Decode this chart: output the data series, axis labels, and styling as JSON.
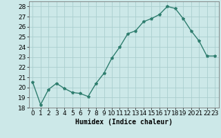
{
  "x": [
    0,
    1,
    2,
    3,
    4,
    5,
    6,
    7,
    8,
    9,
    10,
    11,
    12,
    13,
    14,
    15,
    16,
    17,
    18,
    19,
    20,
    21,
    22,
    23
  ],
  "y": [
    20.5,
    18.3,
    19.8,
    20.4,
    19.9,
    19.5,
    19.4,
    19.1,
    20.4,
    21.4,
    22.9,
    24.0,
    25.3,
    25.6,
    26.5,
    26.8,
    27.2,
    28.0,
    27.8,
    26.8,
    25.6,
    24.6,
    23.1,
    23.1
  ],
  "line_color": "#2e7d6e",
  "marker": "*",
  "marker_size": 3,
  "bg_color": "#cce8e8",
  "grid_color": "#aacece",
  "xlabel": "Humidex (Indice chaleur)",
  "xlim": [
    -0.5,
    23.5
  ],
  "ylim": [
    18,
    28.5
  ],
  "yticks": [
    18,
    19,
    20,
    21,
    22,
    23,
    24,
    25,
    26,
    27,
    28
  ],
  "xticks": [
    0,
    1,
    2,
    3,
    4,
    5,
    6,
    7,
    8,
    9,
    10,
    11,
    12,
    13,
    14,
    15,
    16,
    17,
    18,
    19,
    20,
    21,
    22,
    23
  ],
  "xlabel_fontsize": 7,
  "tick_fontsize": 6.5,
  "line_width": 1.0
}
